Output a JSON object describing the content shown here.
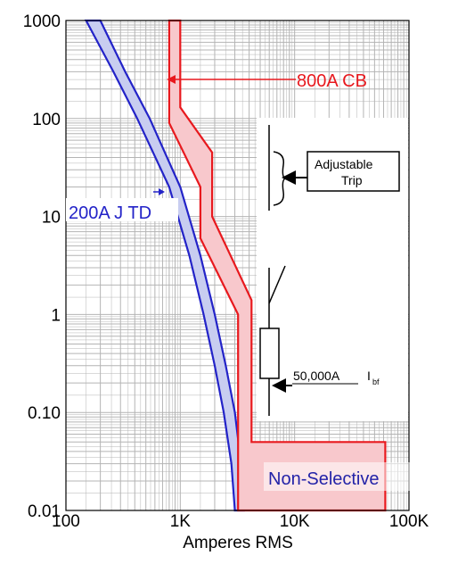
{
  "chart_data": {
    "type": "line",
    "title": "",
    "xlabel": "Amperes RMS",
    "ylabel": "",
    "x_scale": "log",
    "y_scale": "log",
    "xlim": [
      100,
      100000
    ],
    "ylim": [
      0.01,
      1000
    ],
    "grid": true,
    "x_tick_labels": [
      "100",
      "1K",
      "10K",
      "100K"
    ],
    "y_tick_labels": [
      "1000",
      "100",
      "10",
      "1",
      "0.10",
      "0.01"
    ],
    "series": [
      {
        "name": "200A J TD",
        "color": "#2323c8",
        "fill": "#c8cdf0",
        "left_edge": [
          [
            150,
            1000
          ],
          [
            260,
            300
          ],
          [
            420,
            100
          ],
          [
            800,
            20
          ],
          [
            1200,
            4
          ],
          [
            1600,
            1
          ],
          [
            2000,
            0.3
          ],
          [
            2400,
            0.1
          ],
          [
            2800,
            0.03
          ],
          [
            3000,
            0.01
          ]
        ],
        "right_edge": [
          [
            200,
            1000
          ],
          [
            330,
            300
          ],
          [
            540,
            100
          ],
          [
            1000,
            20
          ],
          [
            1500,
            4
          ],
          [
            2000,
            1
          ],
          [
            2500,
            0.3
          ],
          [
            3000,
            0.1
          ],
          [
            3400,
            0.03
          ],
          [
            3600,
            0.01
          ]
        ]
      },
      {
        "name": "800A CB",
        "color": "#e8191e",
        "fill": "#f8c8cc",
        "left_edge": [
          [
            800,
            1000
          ],
          [
            800,
            90
          ],
          [
            1500,
            20
          ],
          [
            1500,
            6
          ],
          [
            3200,
            1
          ],
          [
            3200,
            0.01
          ]
        ],
        "right_edge": [
          [
            1000,
            1000
          ],
          [
            1000,
            130
          ],
          [
            1900,
            45
          ],
          [
            1900,
            10
          ],
          [
            4200,
            1.4
          ],
          [
            4200,
            0.05
          ],
          [
            62000,
            0.05
          ],
          [
            62000,
            0.01
          ]
        ]
      }
    ],
    "annotations": {
      "cb_label": "800A CB",
      "td_label": "200A J TD",
      "adjustable_label_line1": "Adjustable",
      "adjustable_label_line2": "Trip",
      "fault_current": "50,000A",
      "fault_symbol": "I",
      "fault_subscript": "bf",
      "non_selective": "Non-Selective"
    }
  }
}
